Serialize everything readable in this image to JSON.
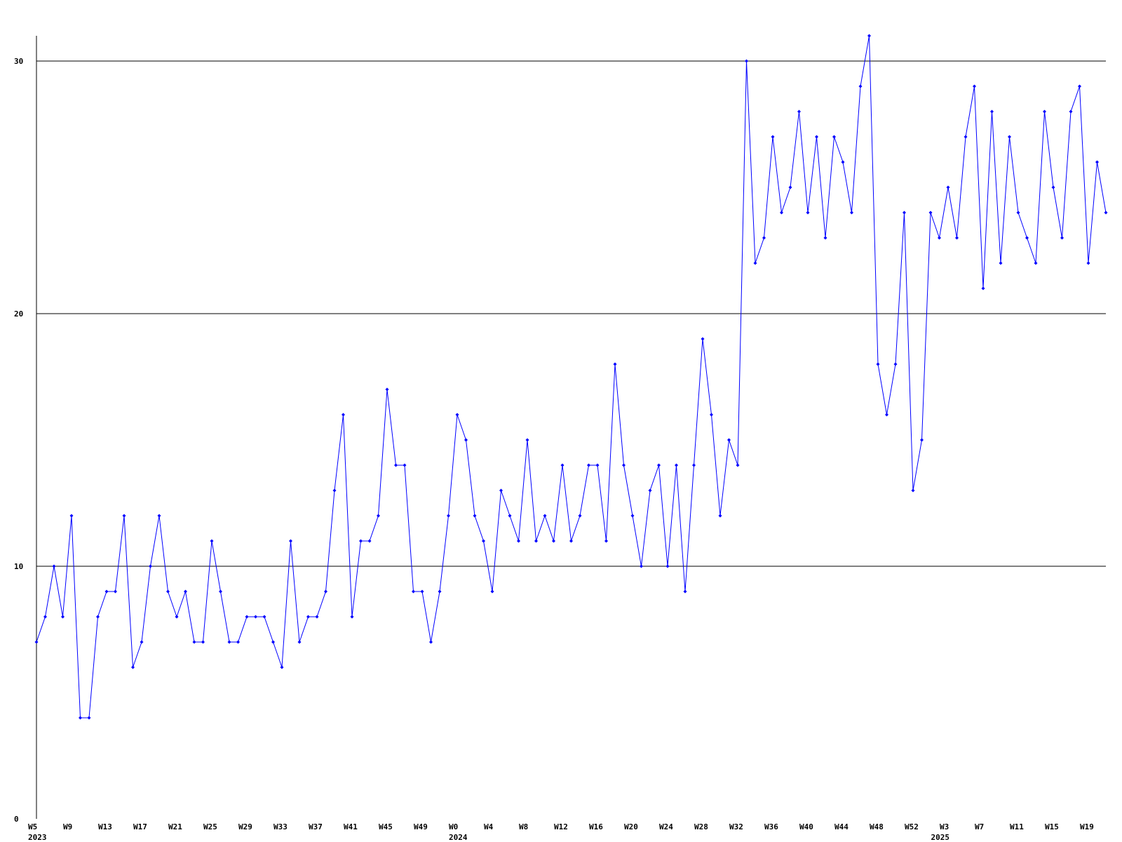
{
  "chart_data": {
    "type": "line",
    "color": "#0000ff",
    "grid": true,
    "ylim": [
      0,
      31
    ],
    "yticks": [
      0,
      10,
      20,
      30
    ],
    "categories": [
      "W5",
      null,
      null,
      null,
      "W9",
      null,
      null,
      null,
      "W13",
      null,
      null,
      null,
      "W17",
      null,
      null,
      null,
      "W21",
      null,
      null,
      null,
      "W25",
      null,
      null,
      null,
      "W29",
      null,
      null,
      null,
      "W33",
      null,
      null,
      null,
      "W37",
      null,
      null,
      null,
      "W41",
      null,
      null,
      null,
      "W45",
      null,
      null,
      null,
      "W49",
      null,
      null,
      null,
      "W0",
      null,
      null,
      null,
      "W4",
      null,
      null,
      null,
      "W8",
      null,
      null,
      null,
      "W12",
      null,
      null,
      null,
      "W16",
      null,
      null,
      null,
      "W20",
      null,
      null,
      null,
      "W24",
      null,
      null,
      null,
      "W28",
      null,
      null,
      null,
      "W32",
      null,
      null,
      null,
      "W36",
      null,
      null,
      null,
      "W40",
      null,
      null,
      null,
      "W44",
      null,
      null,
      null,
      "W48",
      null,
      null,
      null,
      "W52",
      null,
      null,
      null,
      "W3",
      null,
      null,
      null,
      "W7",
      null,
      null,
      null,
      "W11",
      null,
      null,
      null,
      "W15",
      null,
      null,
      null,
      "W19",
      null,
      null
    ],
    "years": [
      "2023",
      null,
      null,
      null,
      null,
      null,
      null,
      null,
      null,
      null,
      null,
      null,
      null,
      null,
      null,
      null,
      null,
      null,
      null,
      null,
      null,
      null,
      null,
      null,
      null,
      null,
      null,
      null,
      null,
      null,
      null,
      null,
      null,
      null,
      null,
      null,
      null,
      null,
      null,
      null,
      null,
      null,
      null,
      null,
      null,
      null,
      null,
      null,
      "2024",
      null,
      null,
      null,
      null,
      null,
      null,
      null,
      null,
      null,
      null,
      null,
      null,
      null,
      null,
      null,
      null,
      null,
      null,
      null,
      null,
      null,
      null,
      null,
      null,
      null,
      null,
      null,
      null,
      null,
      null,
      null,
      null,
      null,
      null,
      null,
      null,
      null,
      null,
      null,
      null,
      null,
      null,
      null,
      null,
      null,
      null,
      null,
      null,
      null,
      null,
      null,
      null,
      null,
      null,
      "2025",
      null,
      null,
      null,
      null,
      null,
      null,
      null,
      null,
      null,
      null,
      null,
      null,
      null,
      null,
      null,
      null,
      null,
      null,
      null,
      null,
      null
    ],
    "values": [
      7,
      8,
      10,
      8,
      12,
      4,
      4,
      8,
      9,
      9,
      12,
      6,
      7,
      10,
      12,
      9,
      8,
      9,
      7,
      7,
      11,
      9,
      7,
      7,
      8,
      8,
      8,
      7,
      6,
      11,
      7,
      8,
      8,
      9,
      13,
      16,
      8,
      11,
      11,
      12,
      17,
      14,
      14,
      9,
      9,
      7,
      9,
      12,
      16,
      15,
      12,
      11,
      9,
      13,
      12,
      11,
      15,
      11,
      12,
      11,
      14,
      11,
      12,
      14,
      14,
      11,
      18,
      14,
      12,
      10,
      13,
      14,
      10,
      14,
      9,
      14,
      19,
      16,
      12,
      15,
      14,
      30,
      22,
      23,
      27,
      24,
      25,
      28,
      24,
      27,
      23,
      27,
      26,
      24,
      29,
      31,
      18,
      16,
      18,
      24,
      13,
      15,
      24,
      23,
      25,
      23,
      27,
      29,
      21,
      28,
      22,
      27,
      24,
      23,
      22,
      28,
      25,
      23,
      28,
      29,
      22,
      26,
      24
    ]
  }
}
